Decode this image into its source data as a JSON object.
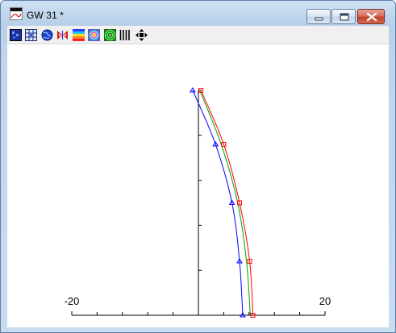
{
  "window": {
    "title": "GW 31 *"
  },
  "toolbar": {
    "icons": [
      "grid-map-icon",
      "data-table-icon",
      "globe-icon",
      "butterfly-icon",
      "color-bands-icon",
      "radial-pattern-icon",
      "target-icon",
      "bars-icon",
      "arrows-cross-icon"
    ]
  },
  "plot": {
    "x_tick_labels": [
      "-20",
      "20"
    ],
    "colors": {
      "blue": "#0000ff",
      "green": "#00a000",
      "red": "#ff0000",
      "axis": "#000000"
    }
  },
  "chart_data": {
    "type": "line",
    "xlim": [
      -20,
      20
    ],
    "x_tick_labels": [
      "-20",
      "20"
    ],
    "x_minor_step": 4,
    "y_axis_ticks": 5,
    "series": [
      {
        "color": "#0000ff",
        "marker": "triangle",
        "points": [
          [
            -0.9,
            1.0
          ],
          [
            2.7,
            0.76
          ],
          [
            5.3,
            0.5
          ],
          [
            6.5,
            0.24
          ],
          [
            7.0,
            0.0
          ]
        ]
      },
      {
        "color": "#00a000",
        "marker": "none",
        "points": [
          [
            0.2,
            1.0
          ],
          [
            3.6,
            0.76
          ],
          [
            6.2,
            0.5
          ],
          [
            7.6,
            0.24
          ],
          [
            8.2,
            0.0
          ]
        ]
      },
      {
        "color": "#ff0000",
        "marker": "square",
        "points": [
          [
            0.4,
            1.0
          ],
          [
            4.0,
            0.76
          ],
          [
            6.5,
            0.5
          ],
          [
            8.1,
            0.24
          ],
          [
            8.6,
            0.0
          ]
        ]
      }
    ]
  }
}
